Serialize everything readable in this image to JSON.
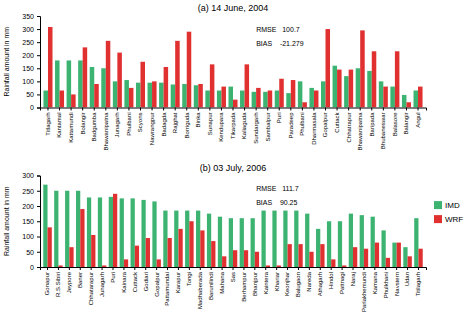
{
  "chart_data": [
    {
      "type": "bar",
      "title": "(a)  14 June, 2004",
      "ylabel": "Rainfall amount in mm",
      "annotations": [
        "RMSE   100.7",
        "BIAS    -21.279"
      ],
      "ylim": [
        0,
        350
      ],
      "yticks": [
        0,
        50,
        100,
        150,
        200,
        250,
        300,
        350
      ],
      "grid": false,
      "categories": [
        "Titlagarh",
        "Kantamal",
        "Kattamundi",
        "Bolangir",
        "Badgumba",
        "Bhawanipatna",
        "Junagarh",
        "Phulbani",
        "Scyons",
        "Nawrangpur",
        "Badagda",
        "Rajghat",
        "Borriguda",
        "Binka",
        "Sunapur",
        "Kendupara",
        "Tikarpada",
        "Kaliaguda",
        "Sundargarh",
        "Sambalpur",
        "Puri",
        "Paradeep",
        "Phulbani",
        "Dharmasala",
        "Gopalpur",
        "Cuttack",
        "Chhatrapur",
        "Bhawanipatna",
        "Baripada",
        "Bhubaneswar",
        "Balasore",
        "Balangir",
        "Angul"
      ],
      "series": [
        {
          "name": "IMD",
          "color": "#3cb371",
          "values": [
            65,
            180,
            180,
            180,
            155,
            150,
            100,
            105,
            95,
            95,
            95,
            88,
            90,
            85,
            65,
            65,
            80,
            65,
            60,
            60,
            65,
            55,
            100,
            75,
            100,
            160,
            120,
            150,
            140,
            100,
            80,
            48,
            65
          ]
        },
        {
          "name": "WRF",
          "color": "#e03030",
          "values": [
            308,
            65,
            50,
            230,
            90,
            255,
            210,
            75,
            175,
            100,
            155,
            255,
            290,
            90,
            165,
            80,
            30,
            165,
            75,
            65,
            110,
            105,
            20,
            65,
            300,
            145,
            145,
            295,
            215,
            80,
            215,
            20,
            80
          ]
        }
      ]
    },
    {
      "type": "bar",
      "title": "(b)  03 July, 2006",
      "ylabel": "Rainfall amount in mm",
      "annotations": [
        "RMSE   111.7",
        "BIAS    90.25"
      ],
      "ylim": [
        0,
        300
      ],
      "yticks": [
        0,
        50,
        100,
        150,
        200,
        250,
        300
      ],
      "grid": false,
      "legend": "right",
      "categories": [
        "Gonapur",
        "R.S.Sibiri",
        "Jeypore",
        "Baner",
        "Chhatarapur",
        "Junagarh",
        "Puri",
        "Kainara",
        "Cuttack",
        "Godiari",
        "Gopalpur",
        "Pattamundai",
        "Karapur",
        "Tongi",
        "Madhaberada",
        "Barunilindi",
        "Mahana",
        "Sas",
        "Berhampur",
        "Bhanjpur",
        "Kaintera",
        "Khariar",
        "Keonjhar",
        "Balugaon",
        "Nareda",
        "Athagarh",
        "Hindol",
        "Pattnagi",
        "Naraj",
        "Parlakhemundi",
        "Kamana",
        "Phulkhani",
        "Navstern",
        "Udan",
        "Titilagarh"
      ],
      "series": [
        {
          "name": "IMD",
          "color": "#3cb371",
          "values": [
            270,
            250,
            250,
            250,
            228,
            228,
            230,
            225,
            225,
            220,
            215,
            185,
            185,
            185,
            185,
            175,
            165,
            160,
            160,
            160,
            185,
            185,
            185,
            185,
            175,
            125,
            150,
            150,
            175,
            170,
            165,
            120,
            80,
            65,
            160
          ]
        },
        {
          "name": "WRF",
          "color": "#e03030",
          "values": [
            130,
            5,
            65,
            190,
            105,
            5,
            240,
            25,
            70,
            95,
            25,
            95,
            125,
            150,
            120,
            85,
            35,
            55,
            55,
            50,
            5,
            5,
            75,
            75,
            50,
            75,
            25,
            5,
            65,
            60,
            80,
            30,
            80,
            35,
            60
          ]
        }
      ]
    }
  ]
}
